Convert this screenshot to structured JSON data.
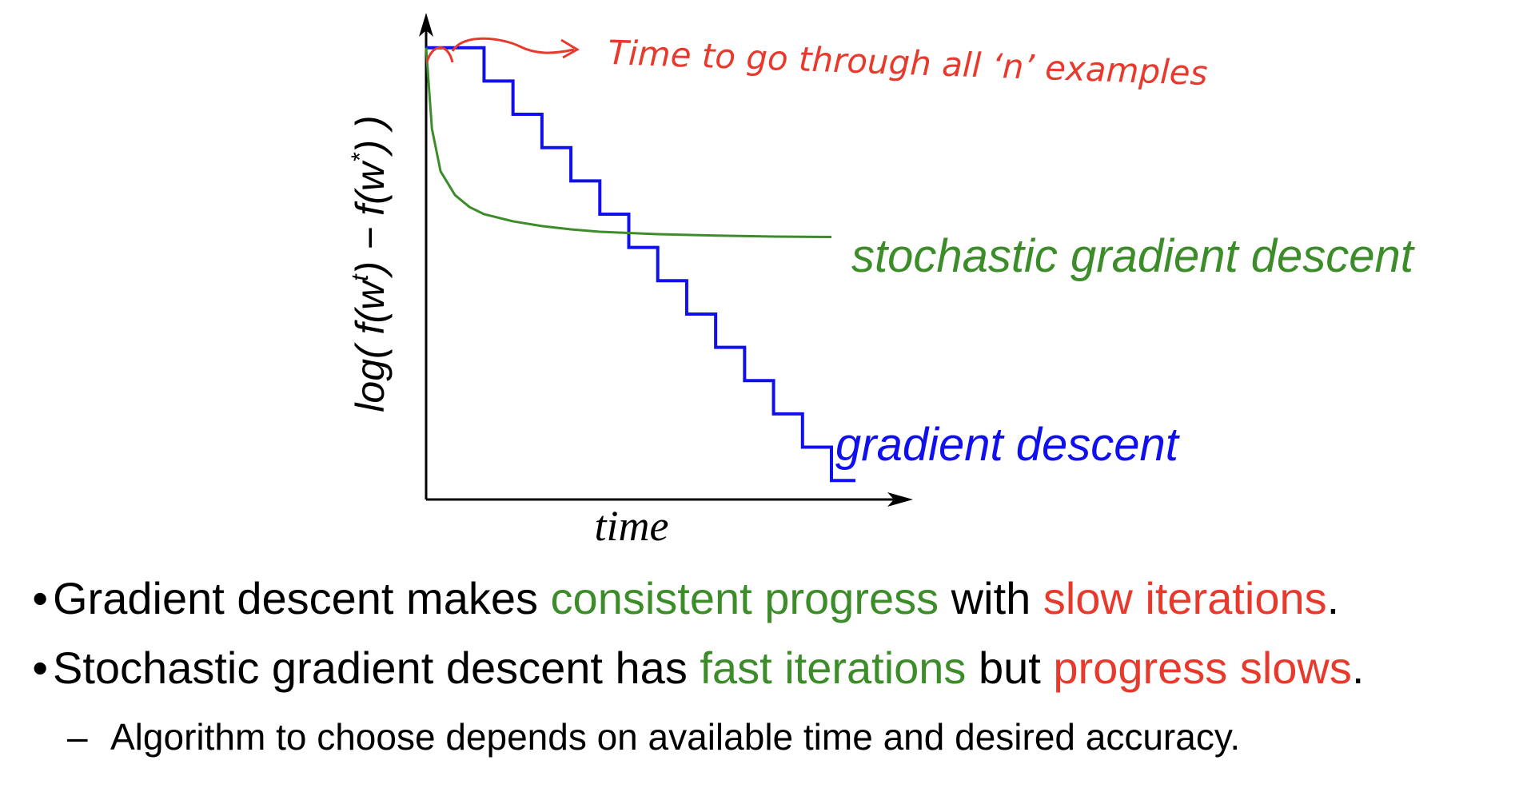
{
  "chart_data": {
    "type": "line",
    "xlabel": "time",
    "ylabel": "log( f(w^t) − f(w*) )",
    "ylabel_parts": {
      "prefix": "log( f(w",
      "sup1": "t",
      "middle": ") − f(w",
      "sup2": "*",
      "suffix": ") )"
    },
    "grid": false,
    "annotation": "Time  to  go  through  all  ‘n’  examples",
    "series": [
      {
        "name": "gradient descent",
        "color": "#1010ee",
        "style": "step",
        "steps": 14,
        "x": [
          0,
          1,
          2,
          3,
          4,
          5,
          6,
          7,
          8,
          9,
          10,
          11,
          12,
          13,
          14
        ],
        "y": [
          0.95,
          0.95,
          0.88,
          0.81,
          0.74,
          0.67,
          0.6,
          0.53,
          0.46,
          0.39,
          0.32,
          0.25,
          0.18,
          0.11,
          0.04
        ]
      },
      {
        "name": "stochastic gradient descent",
        "color": "#3c8c2a",
        "style": "curve",
        "x": [
          0,
          0.2,
          0.5,
          1,
          1.5,
          2,
          3,
          4,
          5,
          6,
          8,
          10,
          12,
          14
        ],
        "y": [
          0.95,
          0.78,
          0.69,
          0.64,
          0.615,
          0.6,
          0.585,
          0.575,
          0.568,
          0.563,
          0.558,
          0.555,
          0.553,
          0.552
        ]
      }
    ]
  },
  "bullets": [
    {
      "marker": "•",
      "segments": [
        {
          "text": "Gradient descent makes ",
          "color": "black"
        },
        {
          "text": "consistent progress",
          "color": "green"
        },
        {
          "text": " with ",
          "color": "black"
        },
        {
          "text": "slow iterations",
          "color": "red"
        },
        {
          "text": ".",
          "color": "black"
        }
      ]
    },
    {
      "marker": "•",
      "segments": [
        {
          "text": "Stochastic gradient descent has ",
          "color": "black"
        },
        {
          "text": "fast iterations",
          "color": "green"
        },
        {
          "text": " but ",
          "color": "black"
        },
        {
          "text": "progress slows",
          "color": "red"
        },
        {
          "text": ".",
          "color": "black"
        }
      ]
    }
  ],
  "sub_bullets": [
    {
      "marker": "–",
      "text": "Algorithm to choose depends on available time and desired accuracy."
    }
  ],
  "colors": {
    "green": "#3c8c2a",
    "red": "#e8392d",
    "blue": "#1010ee",
    "black": "#000000"
  }
}
